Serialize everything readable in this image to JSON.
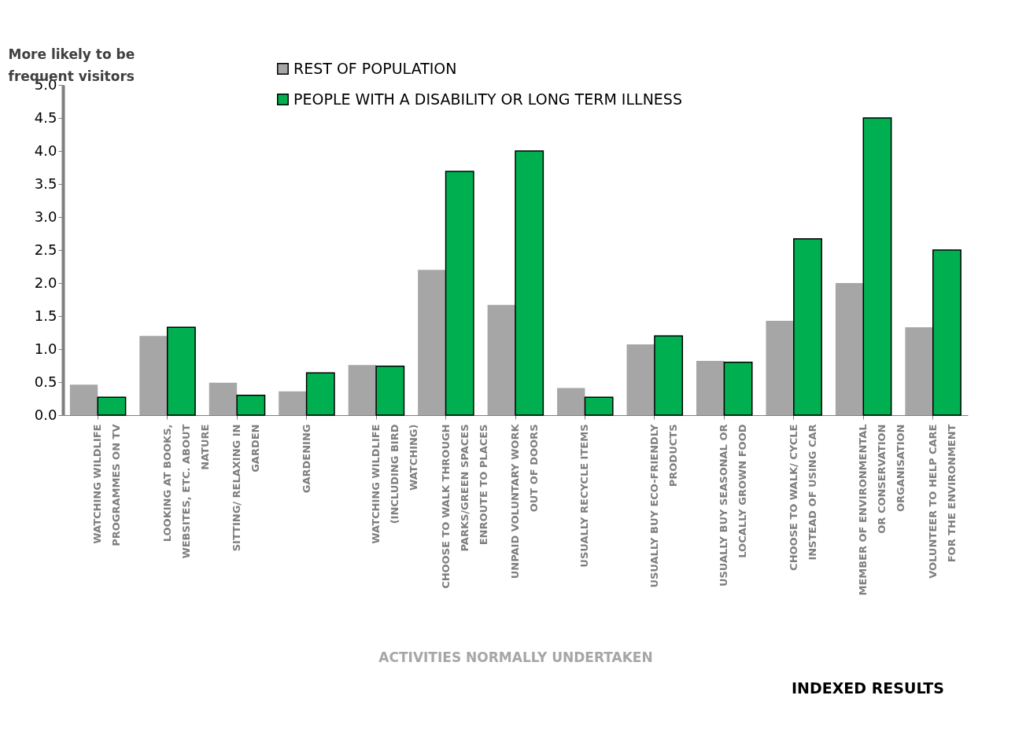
{
  "chart_data": {
    "type": "bar",
    "ylabel": "More likely to be frequent visitors",
    "xlabel": "ACTIVITIES NORMALLY UNDERTAKEN",
    "categories": [
      "WATCHING WILDLIFE PROGRAMMES ON TV",
      "LOOKING AT BOOKS, WEBSITES, ETC. ABOUT NATURE",
      "SITTING/ RELAXING IN GARDEN",
      "GARDENING",
      "WATCHING WILDLIFE (INCLUDING BIRD WATCHING)",
      "CHOOSE TO WALK THROUGH PARKS/GREEN SPACES ENROUTE TO PLACES",
      "UNPAID VOLUNTARY WORK OUT OF DOORS",
      "USUALLY RECYCLE ITEMS",
      "USUALLY BUY ECO-FRIENDLY PRODUCTS",
      "USUALLY BUY SEASONAL OR LOCALLY GROWN FOOD",
      "CHOOSE TO WALK/ CYCLE INSTEAD OF USING CAR",
      "MEMBER OF ENVIRONMENTAL OR CONSERVATION ORGANISATION",
      "VOLUNTEER TO HELP CARE FOR THE ENVIRONMENT"
    ],
    "series": [
      {
        "name": "REST OF POPULATION",
        "color": "#a6a6a6",
        "values": [
          0.46,
          1.2,
          0.49,
          0.36,
          0.76,
          2.2,
          1.67,
          0.41,
          1.07,
          0.82,
          1.43,
          2.0,
          1.33
        ]
      },
      {
        "name": "PEOPLE WITH A DISABILITY OR LONG TERM ILLNESS",
        "color": "#00b050",
        "values": [
          0.27,
          1.33,
          0.3,
          0.64,
          0.74,
          3.69,
          4.0,
          0.27,
          1.2,
          0.8,
          2.67,
          4.5,
          2.5
        ]
      }
    ],
    "ylim": [
      0,
      5
    ],
    "yticks": [
      {
        "value": 0,
        "label": "0.0"
      },
      {
        "value": 0.5,
        "label": "0.5"
      },
      {
        "value": 1,
        "label": "1.0"
      },
      {
        "value": 1.5,
        "label": "1.5"
      },
      {
        "value": 2,
        "label": "2.0"
      },
      {
        "value": 2.5,
        "label": "2.5"
      },
      {
        "value": 3,
        "label": "3.0"
      },
      {
        "value": 3.5,
        "label": "3.5"
      },
      {
        "value": 4,
        "label": "4.0"
      },
      {
        "value": 4.5,
        "label": "4.5"
      },
      {
        "value": 5,
        "label": "5.0"
      }
    ],
    "legend": "top left",
    "grid": false,
    "annotations": [
      "INDEXED RESULTS"
    ]
  }
}
